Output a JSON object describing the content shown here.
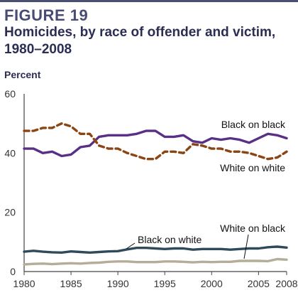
{
  "figure": {
    "label": "FIGURE 19"
  },
  "chart_data": {
    "type": "line",
    "title": "Homicides, by race of offender and victim, 1980–2008",
    "ylabel": "Percent",
    "xlabel": "",
    "xlim": [
      1980,
      2008
    ],
    "ylim": [
      0,
      60
    ],
    "x_ticks": [
      1980,
      1985,
      1990,
      1995,
      2000,
      2005,
      2008
    ],
    "y_ticks": [
      0,
      20,
      40,
      60
    ],
    "grid": false,
    "x": [
      1980,
      1981,
      1982,
      1983,
      1984,
      1985,
      1986,
      1987,
      1988,
      1989,
      1990,
      1991,
      1992,
      1993,
      1994,
      1995,
      1996,
      1997,
      1998,
      1999,
      2000,
      2001,
      2002,
      2003,
      2004,
      2005,
      2006,
      2007,
      2008
    ],
    "series": [
      {
        "name": "Black on black",
        "color": "#5a2f86",
        "style": "solid",
        "values": [
          41.5,
          41.5,
          40,
          40.5,
          39,
          39.5,
          42,
          42.5,
          45.5,
          46,
          46,
          46,
          46.5,
          47.5,
          47.5,
          45.5,
          45.5,
          46,
          44,
          43.5,
          45,
          44.5,
          45,
          44.5,
          43.5,
          45,
          46.5,
          46,
          45
        ]
      },
      {
        "name": "White on white",
        "color": "#8b4513",
        "style": "dashed",
        "values": [
          47.5,
          47.5,
          48.5,
          48.5,
          50,
          49,
          46.5,
          46.5,
          42.5,
          41.5,
          41.5,
          40,
          39,
          38,
          38,
          40.5,
          40.5,
          40,
          43,
          42.5,
          41.5,
          41.5,
          40.5,
          40.5,
          40,
          39,
          38,
          38.5,
          40.5
        ]
      },
      {
        "name": "Black on white",
        "color": "#2f4a5a",
        "style": "solid",
        "values": [
          6.7,
          7,
          6.7,
          6.5,
          6.4,
          6.8,
          6.6,
          6.4,
          6.6,
          6.8,
          6.9,
          7.5,
          8,
          8,
          7.8,
          7.6,
          7.8,
          7.8,
          7.4,
          7.6,
          7.6,
          7.6,
          7.4,
          7.6,
          7.8,
          7.8,
          8.2,
          8.4,
          8.1
        ]
      },
      {
        "name": "White on black",
        "color": "#b5ad9a",
        "style": "solid",
        "values": [
          2.4,
          2.6,
          2.7,
          2.5,
          2.7,
          2.8,
          2.7,
          2.9,
          3,
          3.3,
          3.4,
          3.4,
          3.2,
          3.2,
          3.2,
          3.4,
          3.4,
          3.3,
          3.1,
          3.3,
          3.2,
          3.3,
          3.3,
          3.6,
          3.6,
          3.6,
          3.5,
          4.2,
          4
        ]
      }
    ]
  }
}
